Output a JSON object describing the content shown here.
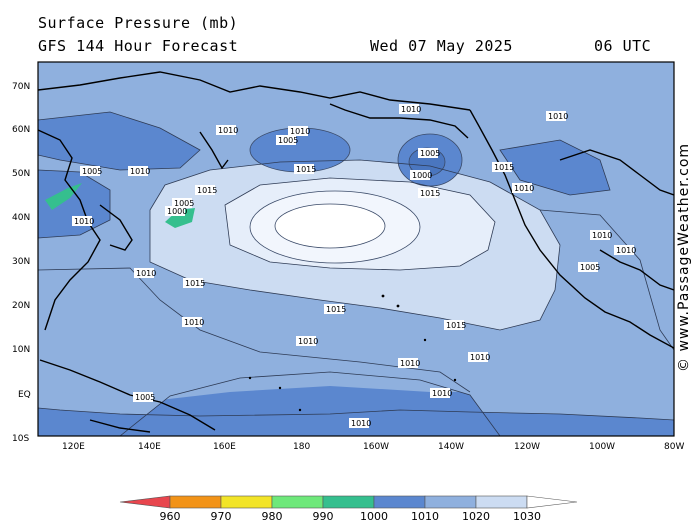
{
  "header": {
    "title": "Surface Pressure (mb)",
    "forecast": "GFS 144 Hour Forecast",
    "date": "Wed 07 May 2025",
    "time": "06 UTC"
  },
  "watermark": "© www.PassageWeather.com",
  "map": {
    "lat_labels": [
      "70N",
      "60N",
      "50N",
      "40N",
      "30N",
      "20N",
      "10N",
      "EQ",
      "10S"
    ],
    "lon_labels": [
      "120E",
      "140E",
      "160E",
      "180",
      "160W",
      "140W",
      "120W",
      "100W",
      "80W"
    ],
    "isobar_labels": [
      "1010",
      "1015",
      "1005",
      "1000",
      "1010",
      "1015",
      "1010",
      "1005",
      "1015",
      "1010",
      "1000",
      "1005",
      "1010",
      "1005",
      "1010",
      "1015",
      "1010",
      "1010",
      "1015",
      "1005",
      "1010",
      "1010",
      "1010",
      "1015",
      "1015",
      "1010",
      "1010",
      "1010",
      "1010",
      "1005",
      "1010"
    ]
  },
  "legend": {
    "values": [
      "960",
      "970",
      "980",
      "990",
      "1000",
      "1010",
      "1020",
      "1030"
    ],
    "colors": [
      "#e8464e",
      "#f29318",
      "#f2e428",
      "#6ee87a",
      "#35bf8e",
      "#5b87cf",
      "#8fb0de",
      "#ccdcf2",
      "#ffffff"
    ]
  }
}
